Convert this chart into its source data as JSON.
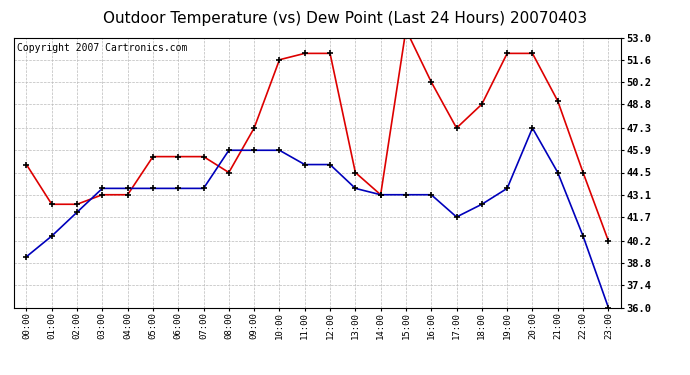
{
  "title": "Outdoor Temperature (vs) Dew Point (Last 24 Hours) 20070403",
  "copyright": "Copyright 2007 Cartronics.com",
  "x_labels": [
    "00:00",
    "01:00",
    "02:00",
    "03:00",
    "04:00",
    "05:00",
    "06:00",
    "07:00",
    "08:00",
    "09:00",
    "10:00",
    "11:00",
    "12:00",
    "13:00",
    "14:00",
    "15:00",
    "16:00",
    "17:00",
    "18:00",
    "19:00",
    "20:00",
    "21:00",
    "22:00",
    "23:00"
  ],
  "temp_red": [
    45.0,
    42.5,
    42.5,
    43.1,
    43.1,
    45.5,
    45.5,
    45.5,
    44.5,
    47.3,
    51.6,
    52.0,
    52.0,
    44.5,
    43.1,
    53.5,
    50.2,
    47.3,
    48.8,
    52.0,
    52.0,
    49.0,
    44.5,
    40.2
  ],
  "temp_blue": [
    39.2,
    40.5,
    42.0,
    43.5,
    43.5,
    43.5,
    43.5,
    43.5,
    45.9,
    45.9,
    45.9,
    45.0,
    45.0,
    43.5,
    43.1,
    43.1,
    43.1,
    41.7,
    42.5,
    43.5,
    47.3,
    44.5,
    40.5,
    36.0
  ],
  "ylim": [
    36.0,
    53.0
  ],
  "yticks": [
    36.0,
    37.4,
    38.8,
    40.2,
    41.7,
    43.1,
    44.5,
    45.9,
    47.3,
    48.8,
    50.2,
    51.6,
    53.0
  ],
  "red_color": "#dd0000",
  "blue_color": "#0000bb",
  "bg_color": "#ffffff",
  "plot_bg": "#ffffff",
  "grid_color": "#bbbbbb",
  "title_fontsize": 11,
  "copyright_fontsize": 7
}
